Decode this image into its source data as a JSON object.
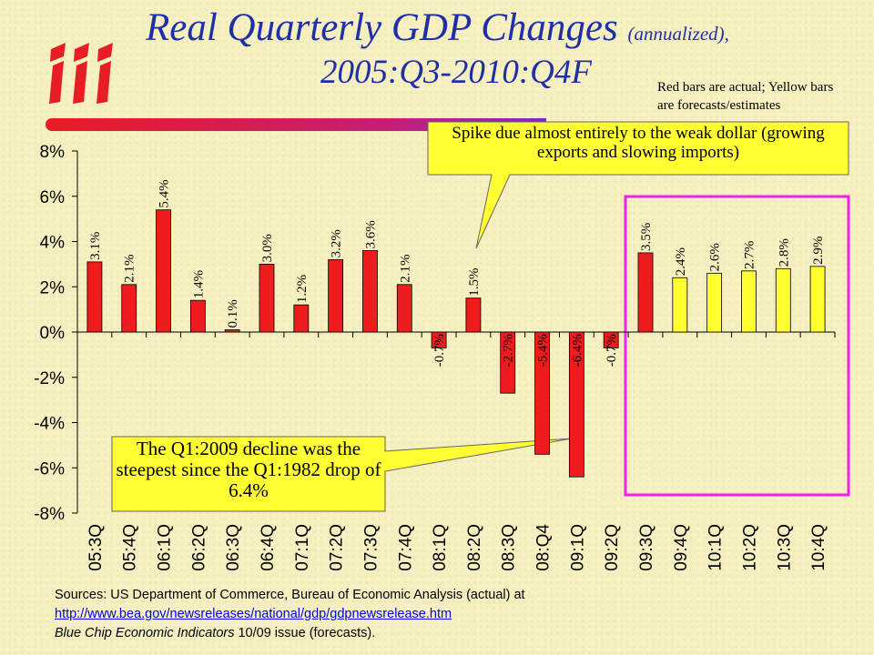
{
  "header": {
    "title_main": "Real Quarterly GDP Changes",
    "title_qualifier": "(annualized),",
    "title_period": "2005:Q3-2010:Q4F",
    "note": "Red bars are actual; Yellow bars are forecasts/estimates",
    "logo_text": "iii"
  },
  "callouts": {
    "top": "Spike due almost entirely to the weak dollar (growing exports and slowing imports)",
    "bottom": "The Q1:2009 decline was the steepest since the Q1:1982 drop of 6.4%"
  },
  "footer": {
    "source_line": "Sources: US Department of Commerce, Bureau of Economic Analysis (actual) at",
    "url": "http://www.bea.gov/newsreleases/national/gdp/gdpnewsrelease.htm",
    "forecast_publication": "Blue Chip Economic Indicators",
    "forecast_rest": " 10/09 issue (forecasts)."
  },
  "colors": {
    "title": "#1f2fa8",
    "actual_bar": "#ee1c1c",
    "forecast_bar": "#ffff2e",
    "highlight_box": "#ee22ee",
    "callout_fill": "#ffff33",
    "logo_red": "#e81c24",
    "rule_start": "#e81c24",
    "rule_end": "#8822cc"
  },
  "chart_data": {
    "type": "bar",
    "categories": [
      "05:3Q",
      "05:4Q",
      "06:1Q",
      "06:2Q",
      "06:3Q",
      "06:4Q",
      "07:1Q",
      "07:2Q",
      "07:3Q",
      "07:4Q",
      "08:1Q",
      "08:2Q",
      "08:3Q",
      "08:Q4",
      "09:1Q",
      "09:2Q",
      "09:3Q",
      "09:4Q",
      "10:1Q",
      "10:2Q",
      "10:3Q",
      "10:4Q"
    ],
    "values": [
      3.1,
      2.1,
      5.4,
      1.4,
      0.1,
      3.0,
      1.2,
      3.2,
      3.6,
      2.1,
      -0.7,
      1.5,
      -2.7,
      -5.4,
      -6.4,
      -0.7,
      3.5,
      2.4,
      2.6,
      2.7,
      2.8,
      2.9
    ],
    "data_labels": [
      "3.1%",
      "2.1%",
      "5.4%",
      "1.4%",
      "0.1%",
      "3.0%",
      "1.2%",
      "3.2%",
      "3.6%",
      "2.1%",
      "-0.7%",
      "1.5%",
      "-2.7%",
      "-5.4%",
      "-6.4%",
      "-0.7%",
      "3.5%",
      "2.4%",
      "2.6%",
      "2.7%",
      "2.8%",
      "2.9%"
    ],
    "status": [
      "actual",
      "actual",
      "actual",
      "actual",
      "actual",
      "actual",
      "actual",
      "actual",
      "actual",
      "actual",
      "actual",
      "actual",
      "actual",
      "actual",
      "actual",
      "actual",
      "actual",
      "forecast",
      "forecast",
      "forecast",
      "forecast",
      "forecast"
    ],
    "ylim": [
      -8,
      8
    ],
    "yticks": [
      8,
      6,
      4,
      2,
      0,
      -2,
      -4,
      -6,
      -8
    ],
    "ytick_labels": [
      "8%",
      "6%",
      "4%",
      "2%",
      "0%",
      "-2%",
      "-4%",
      "-6%",
      "-8%"
    ],
    "xlabel": "",
    "ylabel": "",
    "grid": false,
    "legend": "none"
  }
}
